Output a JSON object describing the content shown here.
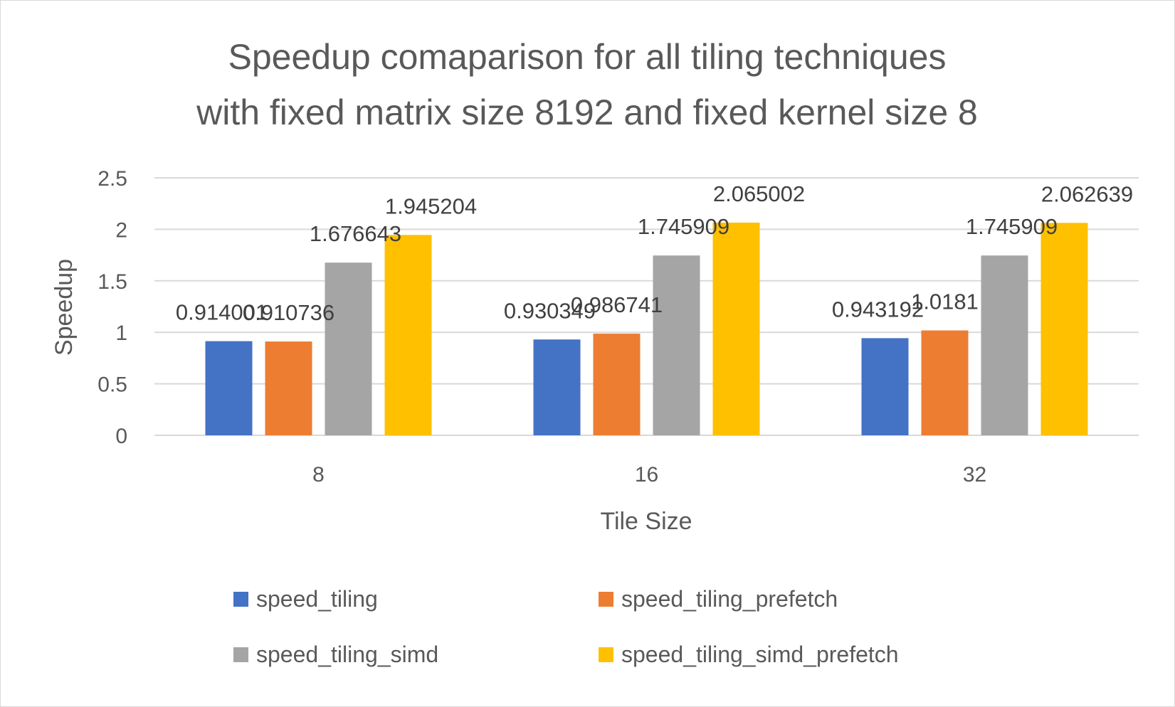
{
  "chart_data": {
    "type": "bar",
    "title_lines": [
      "Speedup comaparison for all tiling techniques",
      "with fixed matrix size 8192 and fixed kernel size 8"
    ],
    "xlabel": "Tile Size",
    "ylabel": "Speedup",
    "categories": [
      "8",
      "16",
      "32"
    ],
    "ylim": [
      0,
      2.5
    ],
    "yticks": [
      "0",
      "0.5",
      "1",
      "1.5",
      "2",
      "2.5"
    ],
    "grid": true,
    "legend_position": "bottom",
    "series": [
      {
        "name": "speed_tiling",
        "color": "#4472C4",
        "values": [
          0.914001,
          0.930349,
          0.943192
        ],
        "labels": [
          "0.914001",
          "0.930349",
          "0.943192"
        ]
      },
      {
        "name": "speed_tiling_prefetch",
        "color": "#ED7D31",
        "values": [
          0.910736,
          0.986741,
          1.0181
        ],
        "labels": [
          "0.910736",
          "0.986741",
          "1.0181"
        ]
      },
      {
        "name": "speed_tiling_simd",
        "color": "#A5A5A5",
        "values": [
          1.676643,
          1.745909,
          1.745909
        ],
        "labels": [
          "1.676643",
          "1.745909",
          "1.745909"
        ]
      },
      {
        "name": "speed_tiling_simd_prefetch",
        "color": "#FFC000",
        "values": [
          1.945204,
          2.065002,
          2.062639
        ],
        "labels": [
          "1.945204",
          "2.065002",
          "2.062639"
        ]
      }
    ]
  }
}
